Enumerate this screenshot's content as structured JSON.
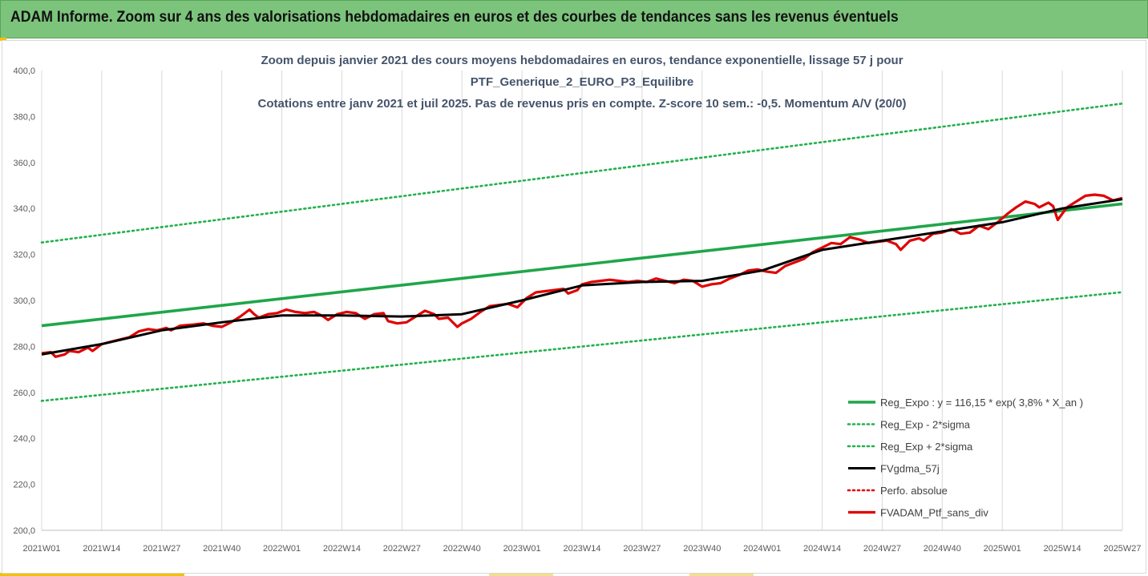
{
  "header": {
    "title": "ADAM Informe. Zoom sur 4 ans des valorisations hebdomadaires en euros et des courbes de tendances sans les revenus éventuels"
  },
  "colors": {
    "header_bg": "#7cc47c",
    "trend_green": "#1fa64a",
    "band_green": "#22b14c",
    "smooth_black": "#000000",
    "perf_red": "#e00000"
  },
  "chart_data": {
    "type": "line",
    "title_lines": [
      "Zoom depuis janvier 2021 des cours moyens hebdomadaires  en euros, tendance exponentielle, lissage 57 j pour",
      "PTF_Generique_2_EURO_P3_Equilibre",
      "Cotations entre janv 2021 et juil 2025. Pas de revenus pris en compte. Z-score 10 sem.: -0,5. Momentum A/V (20/0)"
    ],
    "ylim": [
      200,
      400
    ],
    "y_ticks": [
      "400,0",
      "380,0",
      "360,0",
      "340,0",
      "320,0",
      "300,0",
      "280,0",
      "260,0",
      "240,0",
      "220,0",
      "200,0"
    ],
    "x_ticks": [
      "2021W01",
      "2021W14",
      "2021W27",
      "2021W40",
      "2022W01",
      "2022W14",
      "2022W27",
      "2022W40",
      "2023W01",
      "2023W14",
      "2023W27",
      "2023W40",
      "2024W01",
      "2024W14",
      "2024W27",
      "2024W40",
      "2025W01",
      "2025W14",
      "2025W27"
    ],
    "grid": "vertical",
    "legend_position": "bottom-right",
    "x_range_weeks": [
      0,
      234
    ],
    "series": [
      {
        "name": "Reg_Expo : y = 116,15 * exp( 3,8% *  X_an )",
        "style": "solid",
        "color": "#1fa64a",
        "points": [
          [
            0,
            289.0
          ],
          [
            234,
            342.0
          ]
        ]
      },
      {
        "name": "Reg_Exp - 2*sigma",
        "style": "dotted",
        "color": "#22b14c",
        "points": [
          [
            0,
            256.3
          ],
          [
            234,
            303.6
          ]
        ]
      },
      {
        "name": "Reg_Exp + 2*sigma",
        "style": "dotted",
        "color": "#22b14c",
        "points": [
          [
            0,
            325.2
          ],
          [
            234,
            385.6
          ]
        ]
      },
      {
        "name": "FVgdma_57j",
        "style": "solid",
        "color": "#000000",
        "points": [
          [
            0,
            276.5
          ],
          [
            13,
            281.0
          ],
          [
            26,
            287.0
          ],
          [
            39,
            290.5
          ],
          [
            52,
            293.5
          ],
          [
            65,
            293.5
          ],
          [
            78,
            293.0
          ],
          [
            91,
            294.0
          ],
          [
            104,
            300.0
          ],
          [
            117,
            306.5
          ],
          [
            130,
            308.0
          ],
          [
            143,
            308.5
          ],
          [
            156,
            313.0
          ],
          [
            169,
            322.0
          ],
          [
            182,
            326.0
          ],
          [
            195,
            330.0
          ],
          [
            208,
            334.0
          ],
          [
            221,
            340.0
          ],
          [
            234,
            344.0
          ]
        ]
      },
      {
        "name": "Perfo. absolue",
        "style": "dotted",
        "color": "#e00000",
        "points": []
      },
      {
        "name": "FVADAM_Ptf_sans_div",
        "style": "solid",
        "color": "#e00000",
        "points": [
          [
            0,
            277.0
          ],
          [
            2,
            277.5
          ],
          [
            3,
            275.5
          ],
          [
            5,
            276.5
          ],
          [
            6,
            278.0
          ],
          [
            8,
            277.5
          ],
          [
            10,
            279.5
          ],
          [
            11,
            278.0
          ],
          [
            13,
            281.0
          ],
          [
            16,
            282.5
          ],
          [
            19,
            284.0
          ],
          [
            21,
            286.5
          ],
          [
            23,
            287.5
          ],
          [
            25,
            287.0
          ],
          [
            27,
            288.0
          ],
          [
            28,
            287.0
          ],
          [
            30,
            289.0
          ],
          [
            33,
            289.5
          ],
          [
            35,
            290.0
          ],
          [
            37,
            289.0
          ],
          [
            39,
            288.5
          ],
          [
            41,
            290.5
          ],
          [
            43,
            293.0
          ],
          [
            45,
            296.0
          ],
          [
            46,
            294.0
          ],
          [
            47,
            292.5
          ],
          [
            49,
            294.0
          ],
          [
            51,
            294.5
          ],
          [
            53,
            296.0
          ],
          [
            55,
            295.0
          ],
          [
            57,
            294.5
          ],
          [
            59,
            295.0
          ],
          [
            61,
            293.0
          ],
          [
            62,
            291.5
          ],
          [
            64,
            294.0
          ],
          [
            66,
            295.0
          ],
          [
            68,
            294.5
          ],
          [
            70,
            292.0
          ],
          [
            72,
            294.0
          ],
          [
            74,
            294.5
          ],
          [
            75,
            291.0
          ],
          [
            77,
            290.0
          ],
          [
            79,
            290.5
          ],
          [
            81,
            293.0
          ],
          [
            83,
            295.5
          ],
          [
            85,
            294.0
          ],
          [
            86,
            292.0
          ],
          [
            88,
            292.5
          ],
          [
            90,
            288.5
          ],
          [
            91,
            290.0
          ],
          [
            93,
            292.0
          ],
          [
            95,
            295.0
          ],
          [
            97,
            297.5
          ],
          [
            99,
            298.0
          ],
          [
            101,
            298.5
          ],
          [
            103,
            297.0
          ],
          [
            105,
            301.0
          ],
          [
            107,
            303.5
          ],
          [
            109,
            304.0
          ],
          [
            111,
            304.5
          ],
          [
            113,
            305.0
          ],
          [
            114,
            303.0
          ],
          [
            116,
            304.5
          ],
          [
            117,
            307.0
          ],
          [
            119,
            308.0
          ],
          [
            121,
            308.5
          ],
          [
            123,
            309.0
          ],
          [
            125,
            308.5
          ],
          [
            127,
            308.0
          ],
          [
            129,
            308.5
          ],
          [
            131,
            308.0
          ],
          [
            133,
            309.5
          ],
          [
            135,
            308.5
          ],
          [
            137,
            307.5
          ],
          [
            139,
            309.0
          ],
          [
            141,
            308.5
          ],
          [
            143,
            306.0
          ],
          [
            145,
            307.0
          ],
          [
            147,
            307.5
          ],
          [
            149,
            309.5
          ],
          [
            151,
            311.0
          ],
          [
            153,
            313.0
          ],
          [
            155,
            313.5
          ],
          [
            157,
            312.5
          ],
          [
            159,
            312.0
          ],
          [
            161,
            315.0
          ],
          [
            163,
            316.5
          ],
          [
            165,
            318.0
          ],
          [
            167,
            321.0
          ],
          [
            169,
            323.0
          ],
          [
            171,
            325.0
          ],
          [
            173,
            324.5
          ],
          [
            175,
            327.5
          ],
          [
            177,
            326.5
          ],
          [
            179,
            325.0
          ],
          [
            181,
            325.5
          ],
          [
            183,
            326.0
          ],
          [
            185,
            324.5
          ],
          [
            186,
            322.0
          ],
          [
            188,
            326.0
          ],
          [
            190,
            327.0
          ],
          [
            191,
            326.0
          ],
          [
            193,
            329.0
          ],
          [
            195,
            329.5
          ],
          [
            197,
            331.0
          ],
          [
            199,
            329.0
          ],
          [
            201,
            329.5
          ],
          [
            203,
            332.5
          ],
          [
            205,
            331.0
          ],
          [
            207,
            334.0
          ],
          [
            209,
            337.5
          ],
          [
            211,
            340.5
          ],
          [
            213,
            343.0
          ],
          [
            215,
            342.0
          ],
          [
            216,
            340.5
          ],
          [
            218,
            342.5
          ],
          [
            219,
            341.0
          ],
          [
            220,
            335.0
          ],
          [
            222,
            340.5
          ],
          [
            224,
            343.0
          ],
          [
            226,
            345.5
          ],
          [
            228,
            346.0
          ],
          [
            230,
            345.5
          ],
          [
            232,
            343.5
          ],
          [
            234,
            344.5
          ]
        ]
      }
    ]
  }
}
